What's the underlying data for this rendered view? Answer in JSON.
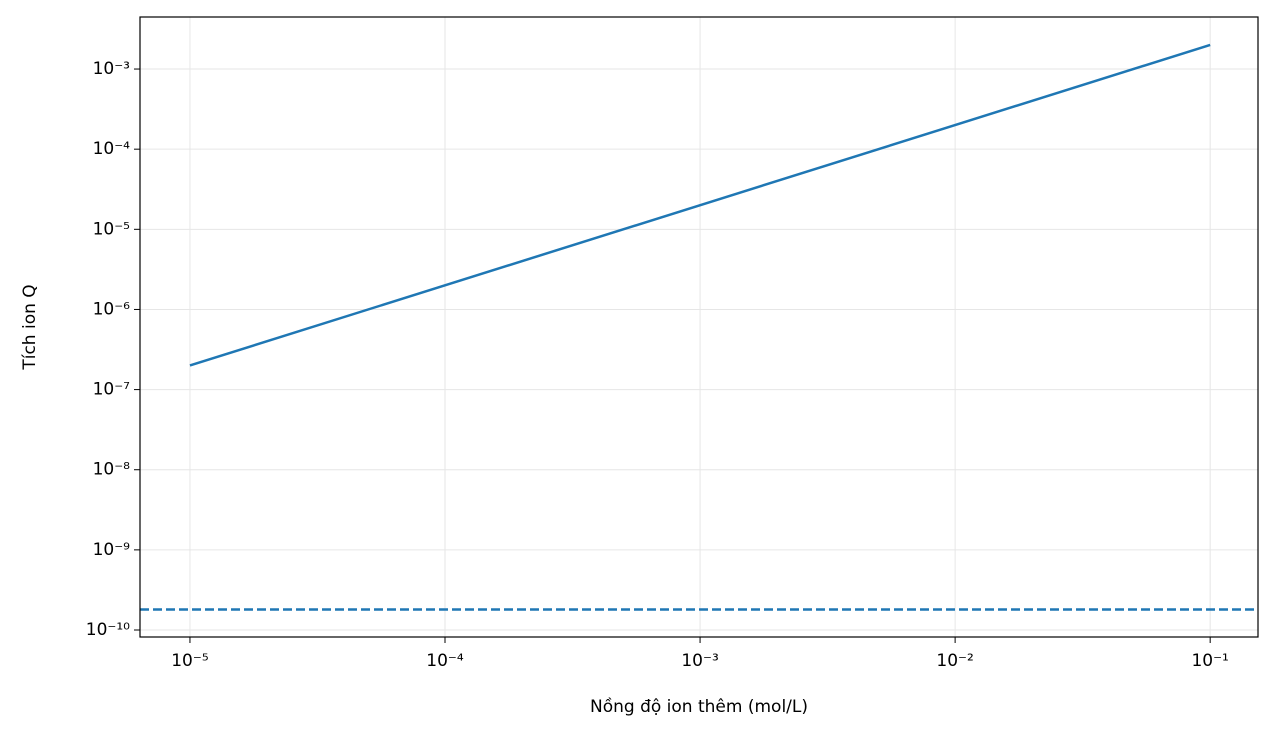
{
  "chart_data": {
    "type": "line",
    "x_label": "Nồng độ ion thêm (mol/L)",
    "y_label": "Tích ion Q",
    "x_log": true,
    "y_log": true,
    "grid": true,
    "xlim": [
      6.37e-06,
      0.154
    ],
    "ylim": [
      8.18e-11,
      0.00446
    ],
    "xticks": [
      {
        "value": 1e-05,
        "label": "10⁻⁵"
      },
      {
        "value": 0.0001,
        "label": "10⁻⁴"
      },
      {
        "value": 0.001,
        "label": "10⁻³"
      },
      {
        "value": 0.01,
        "label": "10⁻²"
      },
      {
        "value": 0.1,
        "label": "10⁻¹"
      }
    ],
    "yticks": [
      {
        "value": 1e-10,
        "label": "10⁻¹⁰"
      },
      {
        "value": 1e-09,
        "label": "10⁻⁹"
      },
      {
        "value": 1e-08,
        "label": "10⁻⁸"
      },
      {
        "value": 1e-07,
        "label": "10⁻⁷"
      },
      {
        "value": 1e-06,
        "label": "10⁻⁶"
      },
      {
        "value": 1e-05,
        "label": "10⁻⁵"
      },
      {
        "value": 0.0001,
        "label": "10⁻⁴"
      },
      {
        "value": 0.001,
        "label": "10⁻³"
      }
    ],
    "series": [
      {
        "color": "#1f77b4",
        "x": [
          1e-05,
          0.1
        ],
        "values": [
          2e-07,
          0.002
        ]
      }
    ],
    "hlines": [
      {
        "value": 1.8e-10,
        "color": "#1f77b4",
        "dashed": true
      }
    ]
  }
}
